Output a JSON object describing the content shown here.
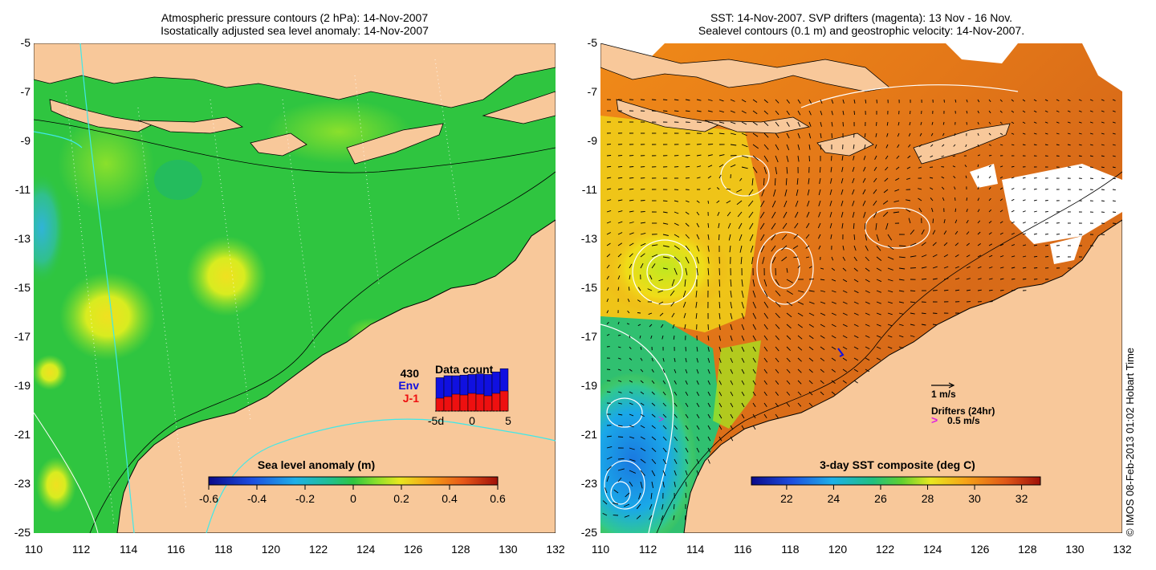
{
  "left_map": {
    "title_line1": "Atmospheric pressure contours (2 hPa): 14-Nov-2007",
    "title_line2": "Isostatically adjusted sea level anomaly: 14-Nov-2007",
    "colorbar_title": "Sea level anomaly (m)",
    "colorbar_ticks": [
      "-0.6",
      "-0.4",
      "-0.2",
      "0",
      "0.2",
      "0.4",
      "0.6"
    ],
    "colorbar_range": [
      -0.6,
      0.6
    ],
    "inset": {
      "count": "430",
      "env_label": "Env",
      "j1_label": "J-1",
      "title": "Data count",
      "x_ticks": [
        "-5d",
        "0",
        "5"
      ],
      "env_color": "#1010e0",
      "j1_color": "#ee1010"
    }
  },
  "right_map": {
    "title_line1": "SST: 14-Nov-2007. SVP drifters (magenta): 13 Nov - 16 Nov.",
    "title_line2": "Sealevel contours (0.1 m) and geostrophic velocity: 14-Nov-2007.",
    "colorbar_title": "3-day SST composite (deg C)",
    "colorbar_ticks": [
      "22",
      "24",
      "26",
      "28",
      "30",
      "32"
    ],
    "colorbar_range": [
      20.5,
      32.8
    ],
    "velocity_scale": "1 m/s",
    "drifter_title": "Drifters (24hr)",
    "drifter_scale": "0.5 m/s",
    "drifter_color": "#e020e0"
  },
  "axes": {
    "y_ticks": [
      "-5",
      "-7",
      "-9",
      "-11",
      "-13",
      "-15",
      "-17",
      "-19",
      "-21",
      "-23",
      "-25"
    ],
    "x_ticks": [
      "110",
      "112",
      "114",
      "116",
      "118",
      "120",
      "122",
      "124",
      "126",
      "128",
      "130",
      "132"
    ],
    "lat_range": [
      -25,
      -5
    ],
    "lon_range": [
      110,
      132
    ]
  },
  "colors": {
    "land": "#f8c89a",
    "sea_green": "#2fc540",
    "coast": "#000000"
  },
  "copyright": "© IMOS 08-Feb-2013 01:02 Hobart Time"
}
